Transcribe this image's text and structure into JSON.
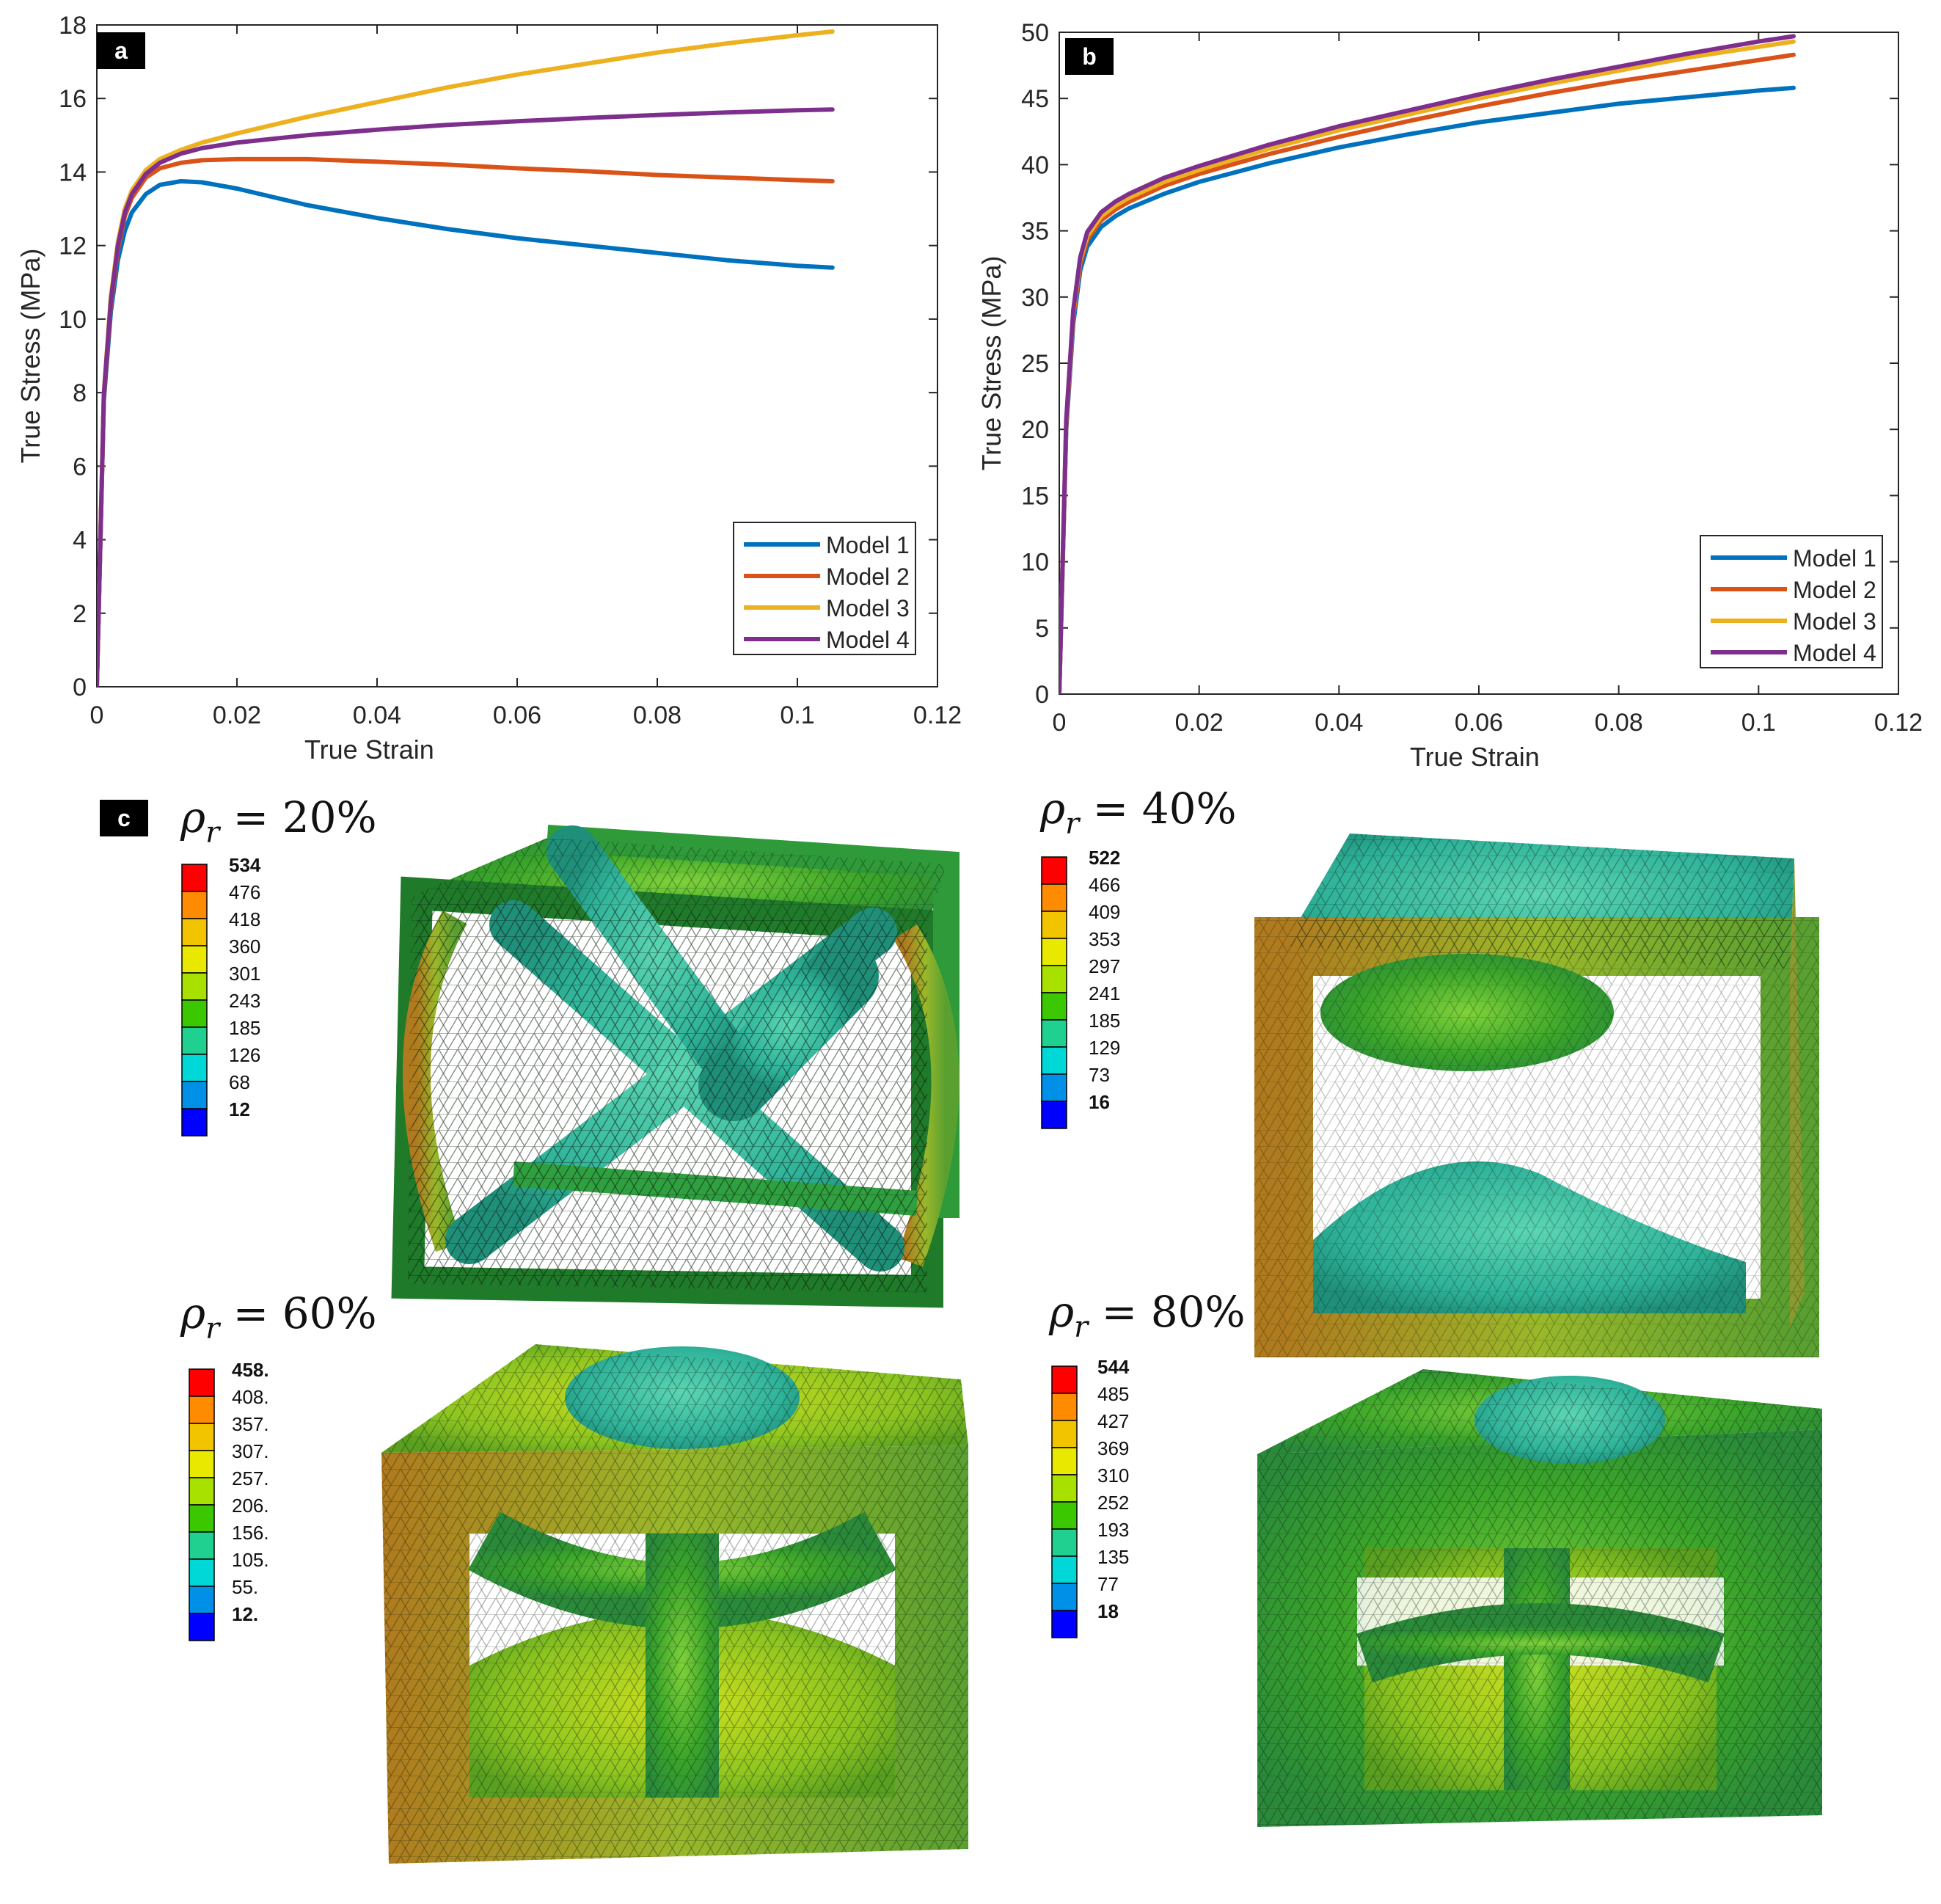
{
  "panels": {
    "a_label": "a",
    "b_label": "b",
    "c_label": "c"
  },
  "chart_data": [
    {
      "id": "a",
      "type": "line",
      "xlabel": "True Strain",
      "ylabel": "True Stress (MPa)",
      "xlim": [
        0,
        0.12
      ],
      "ylim": [
        0,
        18
      ],
      "xticks": [
        0,
        0.02,
        0.04,
        0.06,
        0.08,
        0.1,
        0.12
      ],
      "xtick_labels": [
        "0",
        "0.02",
        "0.04",
        "0.06",
        "0.08",
        "0.1",
        "0.12"
      ],
      "yticks": [
        0,
        2,
        4,
        6,
        8,
        10,
        12,
        14,
        16,
        18
      ],
      "ytick_labels": [
        "0",
        "2",
        "4",
        "6",
        "8",
        "10",
        "12",
        "14",
        "16",
        "18"
      ],
      "legend_position": "bottom-right",
      "series": [
        {
          "name": "Model 1",
          "color": "#0072BD",
          "x": [
            0,
            0.001,
            0.002,
            0.003,
            0.004,
            0.005,
            0.007,
            0.009,
            0.012,
            0.015,
            0.02,
            0.03,
            0.04,
            0.05,
            0.06,
            0.07,
            0.08,
            0.09,
            0.1,
            0.105
          ],
          "y": [
            0,
            7.8,
            10.2,
            11.6,
            12.4,
            12.9,
            13.4,
            13.65,
            13.75,
            13.72,
            13.55,
            13.1,
            12.75,
            12.45,
            12.2,
            12.0,
            11.8,
            11.6,
            11.45,
            11.4
          ]
        },
        {
          "name": "Model 2",
          "color": "#D95319",
          "x": [
            0,
            0.001,
            0.002,
            0.003,
            0.004,
            0.005,
            0.007,
            0.009,
            0.012,
            0.015,
            0.02,
            0.03,
            0.04,
            0.05,
            0.06,
            0.07,
            0.08,
            0.09,
            0.1,
            0.105
          ],
          "y": [
            0,
            7.9,
            10.4,
            11.9,
            12.8,
            13.3,
            13.85,
            14.1,
            14.25,
            14.32,
            14.35,
            14.35,
            14.28,
            14.2,
            14.1,
            14.02,
            13.92,
            13.85,
            13.78,
            13.75
          ]
        },
        {
          "name": "Model 3",
          "color": "#EDB120",
          "x": [
            0,
            0.001,
            0.002,
            0.003,
            0.004,
            0.005,
            0.007,
            0.009,
            0.012,
            0.015,
            0.02,
            0.03,
            0.04,
            0.05,
            0.06,
            0.07,
            0.08,
            0.09,
            0.1,
            0.105
          ],
          "y": [
            0,
            8.0,
            10.6,
            12.1,
            13.0,
            13.5,
            14.05,
            14.35,
            14.6,
            14.8,
            15.05,
            15.5,
            15.9,
            16.3,
            16.65,
            16.95,
            17.25,
            17.5,
            17.72,
            17.82
          ]
        },
        {
          "name": "Model 4",
          "color": "#7E2F8E",
          "x": [
            0,
            0.001,
            0.002,
            0.003,
            0.004,
            0.005,
            0.007,
            0.009,
            0.012,
            0.015,
            0.02,
            0.03,
            0.04,
            0.05,
            0.06,
            0.07,
            0.08,
            0.09,
            0.1,
            0.105
          ],
          "y": [
            0,
            7.95,
            10.5,
            12.0,
            12.9,
            13.4,
            13.95,
            14.25,
            14.5,
            14.65,
            14.8,
            15.0,
            15.15,
            15.28,
            15.38,
            15.47,
            15.55,
            15.62,
            15.68,
            15.7
          ]
        }
      ]
    },
    {
      "id": "b",
      "type": "line",
      "xlabel": "True Strain",
      "ylabel": "True Stress (MPa)",
      "xlim": [
        0,
        0.12
      ],
      "ylim": [
        0,
        50
      ],
      "xticks": [
        0,
        0.02,
        0.04,
        0.06,
        0.08,
        0.1,
        0.12
      ],
      "xtick_labels": [
        "0",
        "0.02",
        "0.04",
        "0.06",
        "0.08",
        "0.1",
        "0.12"
      ],
      "yticks": [
        0,
        5,
        10,
        15,
        20,
        25,
        30,
        35,
        40,
        45,
        50
      ],
      "ytick_labels": [
        "0",
        "5",
        "10",
        "15",
        "20",
        "25",
        "30",
        "35",
        "40",
        "45",
        "50"
      ],
      "legend_position": "bottom-right",
      "series": [
        {
          "name": "Model 1",
          "color": "#0072BD",
          "x": [
            0,
            0.001,
            0.002,
            0.003,
            0.004,
            0.006,
            0.008,
            0.01,
            0.015,
            0.02,
            0.03,
            0.04,
            0.05,
            0.06,
            0.07,
            0.08,
            0.09,
            0.1,
            0.105
          ],
          "y": [
            0,
            20,
            28,
            32,
            33.8,
            35.3,
            36.1,
            36.7,
            37.8,
            38.7,
            40.1,
            41.3,
            42.3,
            43.2,
            43.9,
            44.6,
            45.1,
            45.6,
            45.8
          ]
        },
        {
          "name": "Model 2",
          "color": "#D95319",
          "x": [
            0,
            0.001,
            0.002,
            0.003,
            0.004,
            0.006,
            0.008,
            0.01,
            0.015,
            0.02,
            0.03,
            0.04,
            0.05,
            0.06,
            0.07,
            0.08,
            0.09,
            0.1,
            0.105
          ],
          "y": [
            0,
            20.3,
            28.5,
            32.5,
            34.3,
            35.8,
            36.6,
            37.2,
            38.4,
            39.3,
            40.8,
            42.1,
            43.3,
            44.4,
            45.4,
            46.3,
            47.1,
            47.9,
            48.3
          ]
        },
        {
          "name": "Model 3",
          "color": "#EDB120",
          "x": [
            0,
            0.001,
            0.002,
            0.003,
            0.004,
            0.006,
            0.008,
            0.01,
            0.015,
            0.02,
            0.03,
            0.04,
            0.05,
            0.06,
            0.07,
            0.08,
            0.09,
            0.1,
            0.105
          ],
          "y": [
            0,
            20.5,
            28.8,
            32.8,
            34.6,
            36.1,
            36.9,
            37.5,
            38.7,
            39.6,
            41.2,
            42.6,
            43.8,
            45.0,
            46.1,
            47.1,
            48.1,
            48.9,
            49.3
          ]
        },
        {
          "name": "Model 4",
          "color": "#7E2F8E",
          "x": [
            0,
            0.001,
            0.002,
            0.003,
            0.004,
            0.006,
            0.008,
            0.01,
            0.015,
            0.02,
            0.03,
            0.04,
            0.05,
            0.06,
            0.07,
            0.08,
            0.09,
            0.1,
            0.105
          ],
          "y": [
            0,
            20.7,
            29.0,
            33.0,
            34.9,
            36.4,
            37.2,
            37.8,
            39.0,
            39.9,
            41.5,
            42.9,
            44.1,
            45.3,
            46.4,
            47.4,
            48.4,
            49.3,
            49.7
          ]
        }
      ]
    }
  ],
  "fe_models": [
    {
      "density_label": "ρ",
      "sub": "r",
      "equals": " = 20%",
      "scale": [
        "534",
        "476",
        "418",
        "360",
        "301",
        "243",
        "185",
        "126",
        "68",
        "12"
      ]
    },
    {
      "density_label": "ρ",
      "sub": "r",
      "equals": " = 40%",
      "scale": [
        "522",
        "466",
        "409",
        "353",
        "297",
        "241",
        "185",
        "129",
        "73",
        "16"
      ]
    },
    {
      "density_label": "ρ",
      "sub": "r",
      "equals": " = 60%",
      "scale": [
        "458.",
        "408.",
        "357.",
        "307.",
        "257.",
        "206.",
        "156.",
        "105.",
        "55.",
        "12."
      ]
    },
    {
      "density_label": "ρ",
      "sub": "r",
      "equals": " = 80%",
      "scale": [
        "544",
        "485",
        "427",
        "369",
        "310",
        "252",
        "193",
        "135",
        "77",
        "18"
      ]
    }
  ],
  "colormap": [
    "#ff0000",
    "#ff8c00",
    "#f2c400",
    "#e8e800",
    "#a8e000",
    "#3cc800",
    "#20d090",
    "#00d8d8",
    "#0090e8",
    "#0000ff"
  ]
}
